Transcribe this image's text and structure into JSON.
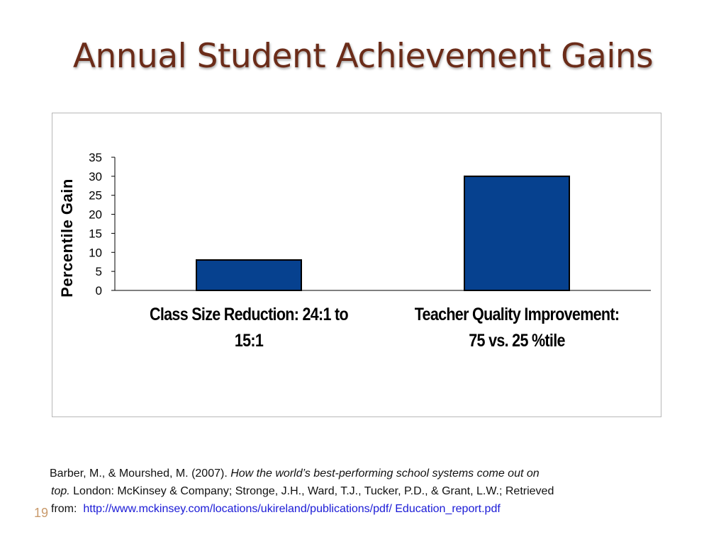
{
  "slide": {
    "title": "Annual Student Achievement Gains",
    "page_number": "19"
  },
  "citation": {
    "authors": "Barber, M., & Mourshed, M. (2007).",
    "title_part1": "How the world’s best-performing school systems come out on",
    "title_part2": "top.",
    "rest_line2": "London: McKinsey & Company; Stronge, J.H., Ward, T.J., Tucker, P.D., & Grant, L.W.; Retrieved",
    "from_label": "from:",
    "url": "http://www.mckinsey.com/locations/ukireland/publications/pdf/ Education_report.pdf"
  },
  "chart_data": {
    "type": "bar",
    "categories": [
      "Class Size Reduction: 24:1 to 15:1",
      "Teacher Quality Improvement: 75 vs. 25 %tile"
    ],
    "values": [
      8,
      30
    ],
    "ylabel": "Percentile Gain",
    "xlabel": "",
    "ylim": [
      0,
      35
    ],
    "yticks": [
      0,
      5,
      10,
      15,
      20,
      25,
      30,
      35
    ],
    "grid": false,
    "legend": "none",
    "bar_color": "#06418f",
    "bar_edge_color": "#000000"
  }
}
